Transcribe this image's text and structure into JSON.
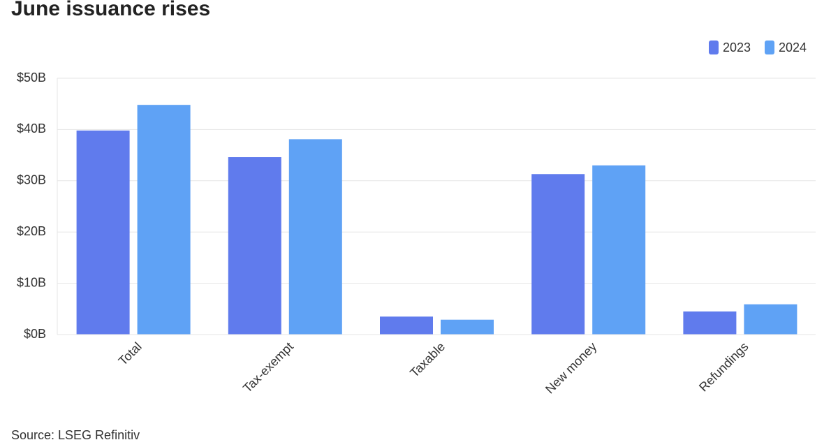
{
  "chart_data": {
    "type": "bar",
    "title": "June issuance rises",
    "source": "Source: LSEG Refinitiv",
    "categories": [
      "Total",
      "Tax-exempt",
      "Taxable",
      "New money",
      "Refundings"
    ],
    "series": [
      {
        "name": "2023",
        "color": "#607bed",
        "values": [
          39.8,
          34.6,
          3.5,
          31.3,
          4.5
        ]
      },
      {
        "name": "2024",
        "color": "#5fa2f5",
        "values": [
          44.8,
          38.1,
          2.9,
          33.0,
          5.9
        ]
      }
    ],
    "ylim": [
      0,
      50
    ],
    "yticks": [
      {
        "value": 0,
        "label": "$0B"
      },
      {
        "value": 10,
        "label": "$10B"
      },
      {
        "value": 20,
        "label": "$20B"
      },
      {
        "value": 30,
        "label": "$30B"
      },
      {
        "value": 40,
        "label": "$40B"
      },
      {
        "value": 50,
        "label": "$50B"
      }
    ],
    "grid": true,
    "legend": "top-right"
  }
}
